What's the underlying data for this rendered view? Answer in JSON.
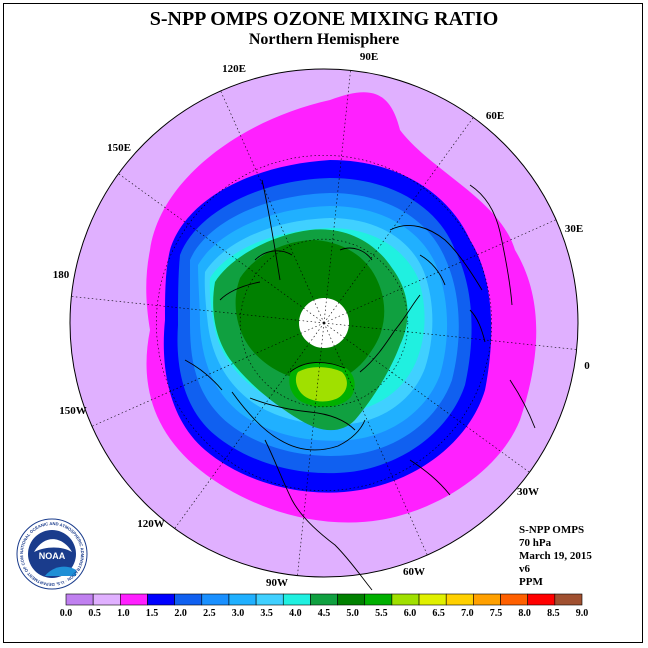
{
  "title": "S-NPP OMPS OZONE MIXING RATIO",
  "subtitle": "Northern Hemisphere",
  "longitude_labels": {
    "lon_90e": "90E",
    "lon_60e": "60E",
    "lon_30e": "30E",
    "lon_0": "0",
    "lon_30w": "30W",
    "lon_60w": "60W",
    "lon_90w": "90W",
    "lon_120w": "120W",
    "lon_150w": "150W",
    "lon_180": "180",
    "lon_150e": "150E",
    "lon_120e": "120E"
  },
  "info": {
    "instrument": "S-NPP OMPS",
    "level": "70 hPa",
    "date": "March 19, 2015",
    "version": "v6",
    "units": "PPM"
  },
  "colorbar": {
    "ticks": [
      "0.0",
      "0.5",
      "1.0",
      "1.5",
      "2.0",
      "2.5",
      "3.0",
      "3.5",
      "4.0",
      "4.5",
      "5.0",
      "5.5",
      "6.0",
      "6.5",
      "7.0",
      "7.5",
      "8.0",
      "8.5",
      "9.0"
    ],
    "colors": [
      "#c080f0",
      "#e0b0ff",
      "#ff20ff",
      "#0000ff",
      "#1060f0",
      "#1a90ff",
      "#20b0ff",
      "#40d0ff",
      "#20f0e0",
      "#10a040",
      "#008000",
      "#00b000",
      "#a0e000",
      "#e0f000",
      "#ffd000",
      "#ffa000",
      "#ff6000",
      "#ff0000",
      "#a05030"
    ]
  },
  "logo": {
    "text": "NOAA",
    "ring_text": "NATIONAL OCEANIC AND ATMOSPHERIC ADMINISTRATION · U.S. DEPARTMENT OF COMMERCE"
  }
}
